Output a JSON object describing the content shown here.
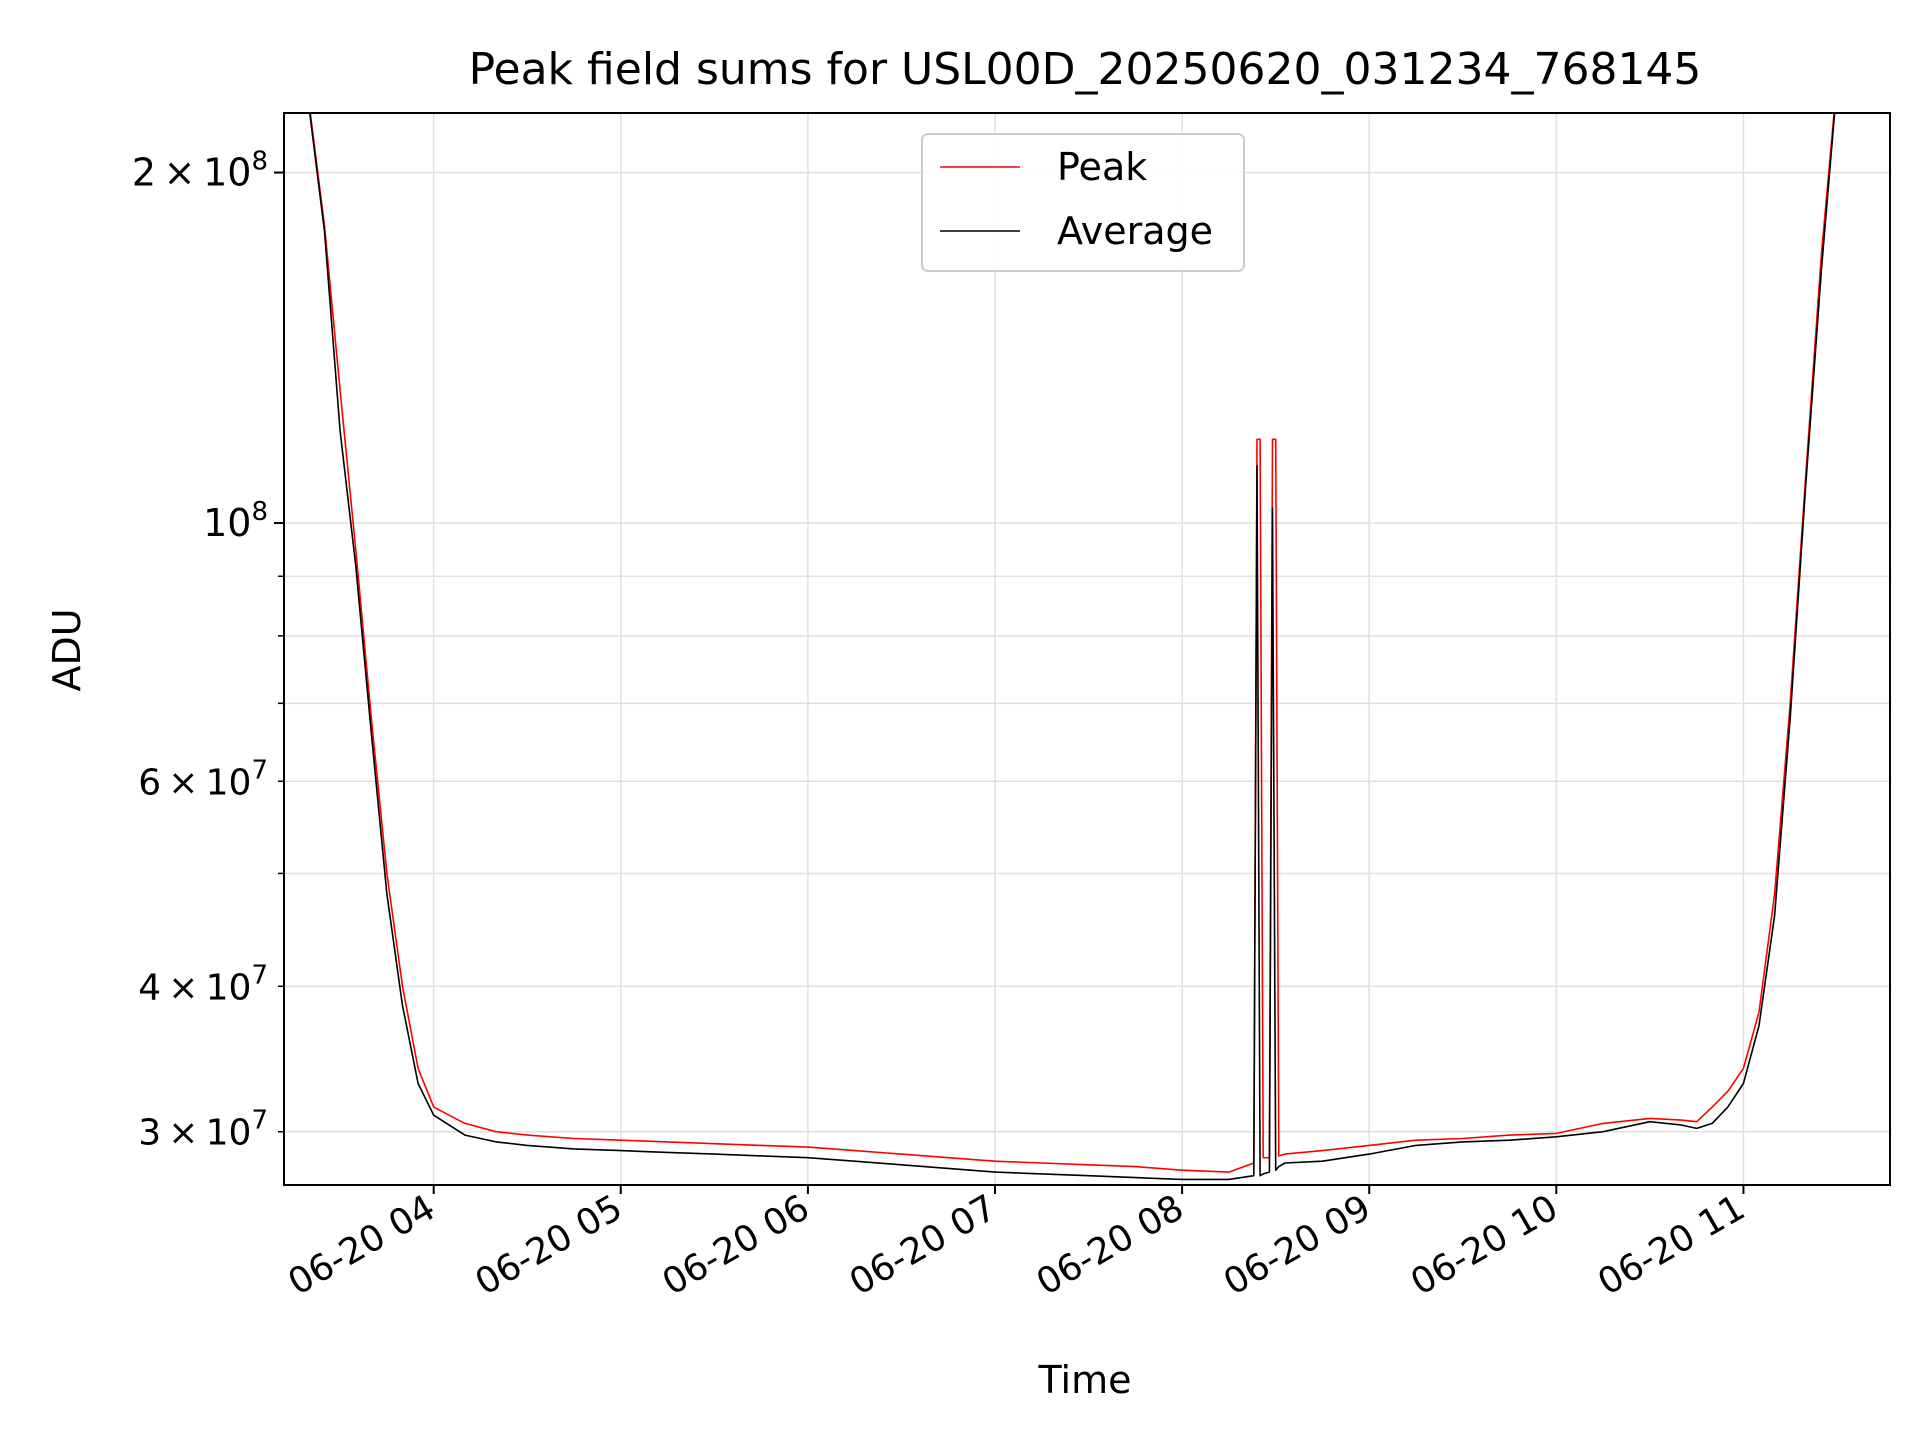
{
  "chart_data": {
    "type": "line",
    "title": "Peak field sums for USL00D_20250620_031234_768145",
    "xlabel": "Time",
    "ylabel": "ADU",
    "y_scale": "log",
    "ylim": [
      27000000,
      225000000
    ],
    "xlim": [
      "2025-06-20 03:12",
      "2025-06-20 11:47"
    ],
    "grid": true,
    "legend_position": "top-center",
    "x_ticks": [
      {
        "value": "2025-06-20 04:00",
        "label": "06-20 04"
      },
      {
        "value": "2025-06-20 05:00",
        "label": "06-20 05"
      },
      {
        "value": "2025-06-20 06:00",
        "label": "06-20 06"
      },
      {
        "value": "2025-06-20 07:00",
        "label": "06-20 07"
      },
      {
        "value": "2025-06-20 08:00",
        "label": "06-20 08"
      },
      {
        "value": "2025-06-20 09:00",
        "label": "06-20 09"
      },
      {
        "value": "2025-06-20 10:00",
        "label": "06-20 10"
      },
      {
        "value": "2025-06-20 11:00",
        "label": "06-20 11"
      }
    ],
    "y_major_ticks": [
      {
        "value": 100000000,
        "mant": "",
        "exp": "8",
        "base": "10"
      },
      {
        "value": 200000000,
        "mant": "2",
        "exp": "8",
        "base": "10"
      }
    ],
    "y_minor_ticks": [
      {
        "value": 30000000,
        "mant": "3",
        "exp": "7",
        "base": "10"
      },
      {
        "value": 40000000,
        "mant": "4",
        "exp": "7",
        "base": "10"
      },
      {
        "value": 50000000,
        "mant": "",
        "exp": "",
        "base": ""
      },
      {
        "value": 60000000,
        "mant": "6",
        "exp": "7",
        "base": "10"
      },
      {
        "value": 70000000,
        "mant": "",
        "exp": "",
        "base": ""
      },
      {
        "value": 80000000,
        "mant": "",
        "exp": "",
        "base": ""
      },
      {
        "value": 90000000,
        "mant": "",
        "exp": "",
        "base": ""
      }
    ],
    "series": [
      {
        "name": "Peak",
        "color": "#ff0000",
        "x": [
          "2025-06-20 03:20",
          "2025-06-20 03:25",
          "2025-06-20 03:30",
          "2025-06-20 03:35",
          "2025-06-20 03:40",
          "2025-06-20 03:45",
          "2025-06-20 03:50",
          "2025-06-20 03:55",
          "2025-06-20 04:00",
          "2025-06-20 04:10",
          "2025-06-20 04:20",
          "2025-06-20 04:30",
          "2025-06-20 04:45",
          "2025-06-20 05:00",
          "2025-06-20 05:15",
          "2025-06-20 05:30",
          "2025-06-20 05:45",
          "2025-06-20 06:00",
          "2025-06-20 06:15",
          "2025-06-20 06:30",
          "2025-06-20 06:45",
          "2025-06-20 07:00",
          "2025-06-20 07:15",
          "2025-06-20 07:30",
          "2025-06-20 07:45",
          "2025-06-20 08:00",
          "2025-06-20 08:15",
          "2025-06-20 08:23",
          "2025-06-20 08:24",
          "2025-06-20 08:25",
          "2025-06-20 08:26",
          "2025-06-20 08:28",
          "2025-06-20 08:29",
          "2025-06-20 08:30",
          "2025-06-20 08:31",
          "2025-06-20 08:33",
          "2025-06-20 08:45",
          "2025-06-20 09:00",
          "2025-06-20 09:15",
          "2025-06-20 09:30",
          "2025-06-20 09:45",
          "2025-06-20 10:00",
          "2025-06-20 10:15",
          "2025-06-20 10:30",
          "2025-06-20 10:40",
          "2025-06-20 10:45",
          "2025-06-20 10:50",
          "2025-06-20 10:55",
          "2025-06-20 11:00",
          "2025-06-20 11:05",
          "2025-06-20 11:10",
          "2025-06-20 11:15",
          "2025-06-20 11:20",
          "2025-06-20 11:25",
          "2025-06-20 11:30"
        ],
        "y": [
          230000000,
          180000000,
          130000000,
          95000000,
          68000000,
          50000000,
          40000000,
          34000000,
          31500000,
          30500000,
          30000000,
          29800000,
          29600000,
          29500000,
          29400000,
          29300000,
          29200000,
          29100000,
          28900000,
          28700000,
          28500000,
          28300000,
          28200000,
          28100000,
          28000000,
          27800000,
          27700000,
          28200000,
          118000000,
          118000000,
          28500000,
          28500000,
          118000000,
          118000000,
          28600000,
          28700000,
          28900000,
          29200000,
          29500000,
          29600000,
          29800000,
          29900000,
          30500000,
          30800000,
          30700000,
          30600000,
          31500000,
          32500000,
          34000000,
          38000000,
          48000000,
          70000000,
          110000000,
          170000000,
          240000000
        ]
      },
      {
        "name": "Average",
        "color": "#000000",
        "x": [
          "2025-06-20 03:20",
          "2025-06-20 03:25",
          "2025-06-20 03:30",
          "2025-06-20 03:35",
          "2025-06-20 03:40",
          "2025-06-20 03:45",
          "2025-06-20 03:50",
          "2025-06-20 03:55",
          "2025-06-20 04:00",
          "2025-06-20 04:10",
          "2025-06-20 04:20",
          "2025-06-20 04:30",
          "2025-06-20 04:45",
          "2025-06-20 05:00",
          "2025-06-20 05:15",
          "2025-06-20 05:30",
          "2025-06-20 05:45",
          "2025-06-20 06:00",
          "2025-06-20 06:15",
          "2025-06-20 06:30",
          "2025-06-20 06:45",
          "2025-06-20 07:00",
          "2025-06-20 07:15",
          "2025-06-20 07:30",
          "2025-06-20 07:45",
          "2025-06-20 08:00",
          "2025-06-20 08:15",
          "2025-06-20 08:23",
          "2025-06-20 08:24",
          "2025-06-20 08:25",
          "2025-06-20 08:26",
          "2025-06-20 08:28",
          "2025-06-20 08:29",
          "2025-06-20 08:30",
          "2025-06-20 08:31",
          "2025-06-20 08:33",
          "2025-06-20 08:45",
          "2025-06-20 09:00",
          "2025-06-20 09:15",
          "2025-06-20 09:30",
          "2025-06-20 09:45",
          "2025-06-20 10:00",
          "2025-06-20 10:15",
          "2025-06-20 10:30",
          "2025-06-20 10:40",
          "2025-06-20 10:45",
          "2025-06-20 10:50",
          "2025-06-20 10:55",
          "2025-06-20 11:00",
          "2025-06-20 11:05",
          "2025-06-20 11:10",
          "2025-06-20 11:15",
          "2025-06-20 11:20",
          "2025-06-20 11:25",
          "2025-06-20 11:30"
        ],
        "y": [
          228000000,
          178000000,
          120000000,
          92000000,
          66000000,
          48000000,
          38500000,
          33000000,
          31000000,
          29800000,
          29400000,
          29200000,
          29000000,
          28900000,
          28800000,
          28700000,
          28600000,
          28500000,
          28300000,
          28100000,
          27900000,
          27700000,
          27600000,
          27500000,
          27400000,
          27300000,
          27300000,
          27500000,
          112000000,
          27500000,
          27600000,
          27700000,
          103000000,
          27800000,
          28000000,
          28200000,
          28300000,
          28700000,
          29200000,
          29400000,
          29500000,
          29700000,
          30000000,
          30600000,
          30400000,
          30200000,
          30500000,
          31500000,
          33000000,
          37000000,
          46000000,
          68000000,
          108000000,
          165000000,
          238000000
        ]
      }
    ]
  }
}
